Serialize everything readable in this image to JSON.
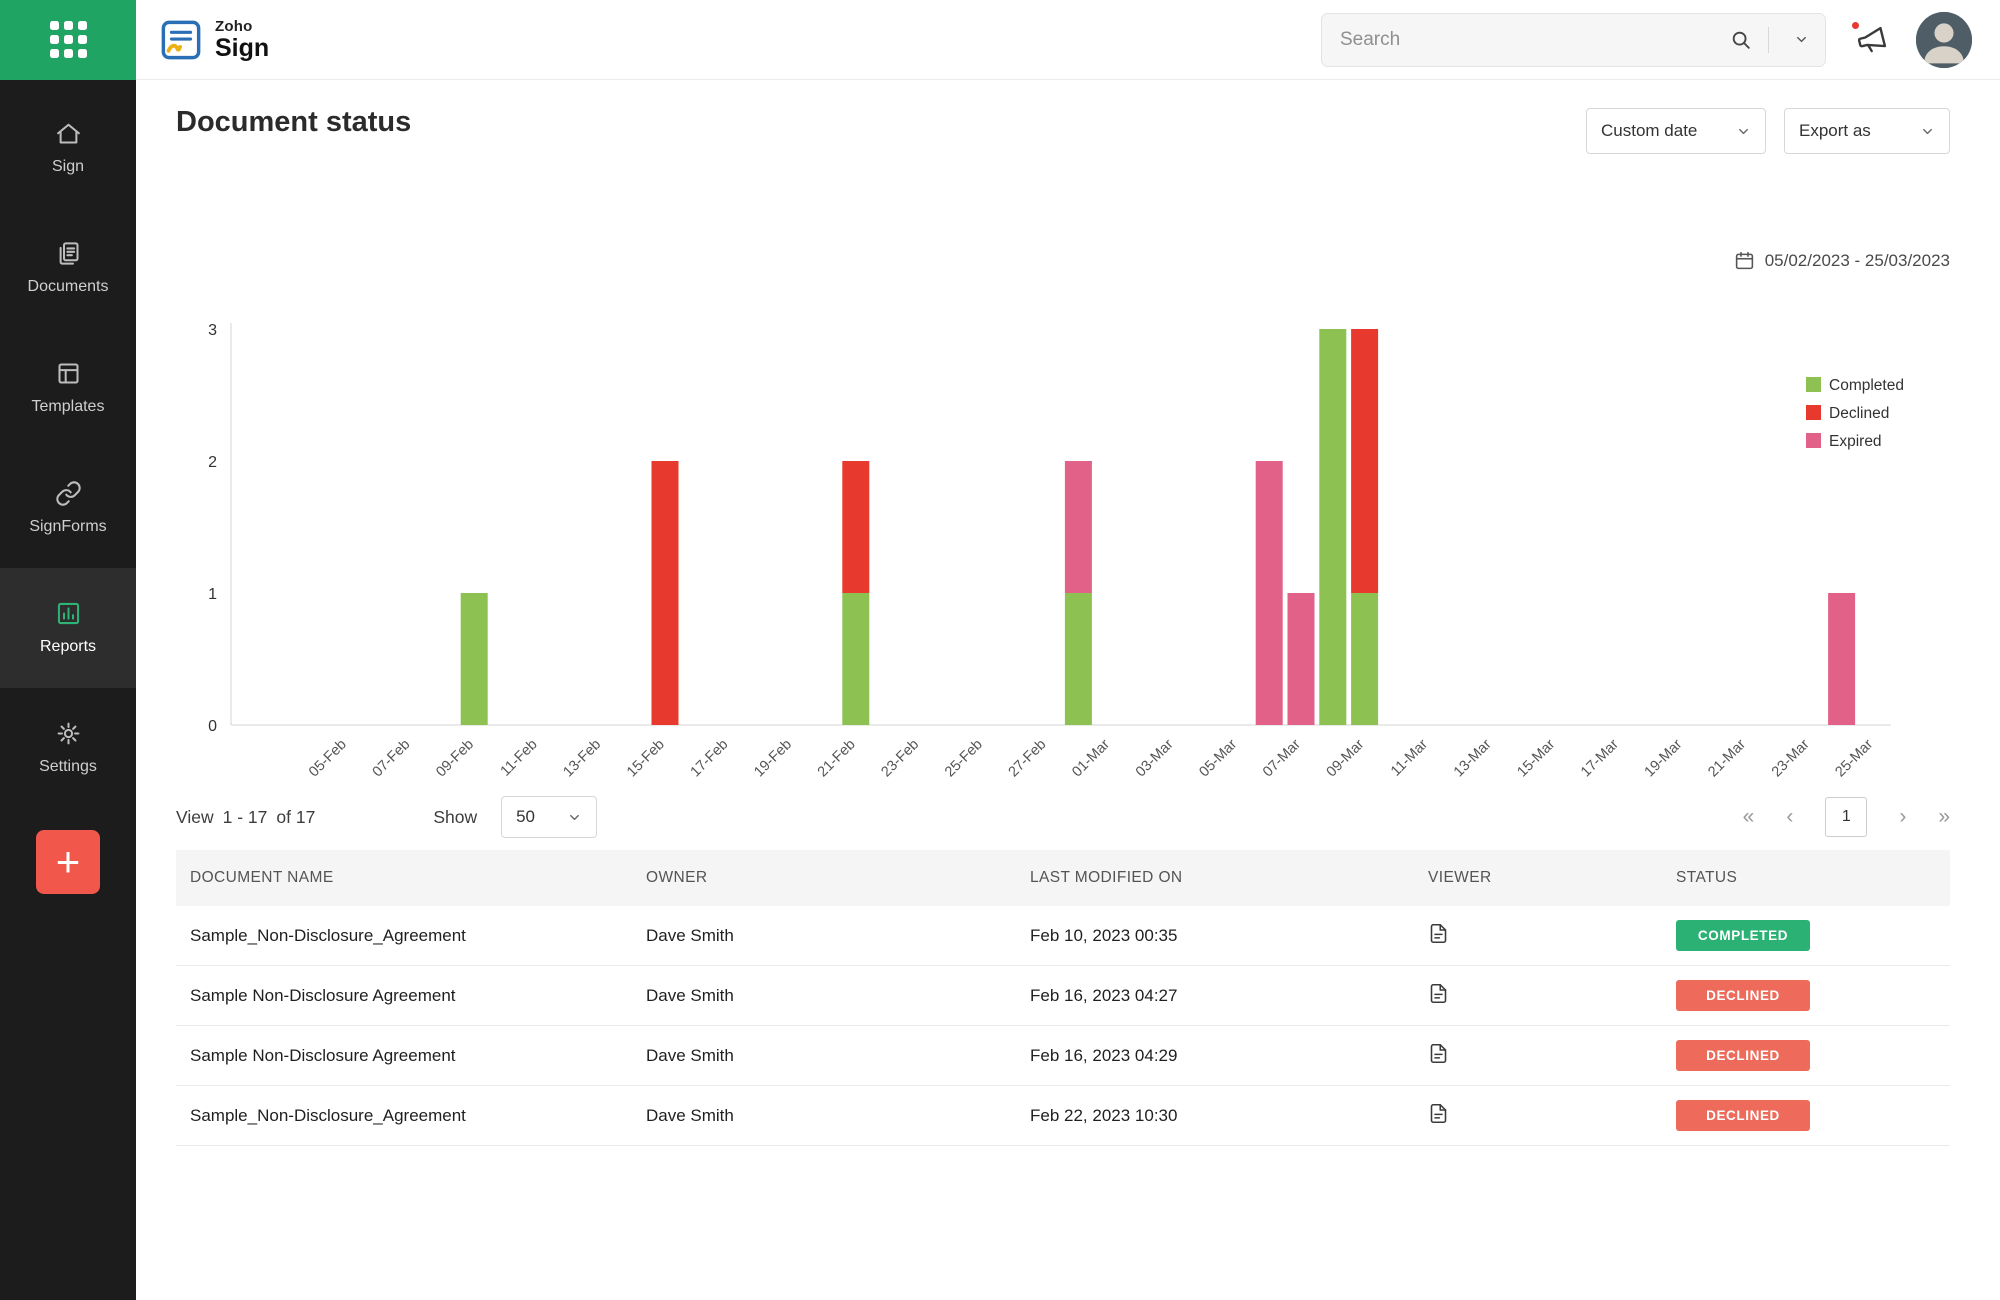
{
  "topbar": {
    "logo_zoho": "Zoho",
    "logo_sign": "Sign",
    "search_placeholder": "Search"
  },
  "sidebar": {
    "items": [
      {
        "label": "Sign",
        "icon": "home",
        "active": false
      },
      {
        "label": "Documents",
        "icon": "documents",
        "active": false
      },
      {
        "label": "Templates",
        "icon": "templates",
        "active": false
      },
      {
        "label": "SignForms",
        "icon": "signforms",
        "active": false
      },
      {
        "label": "Reports",
        "icon": "reports",
        "active": true
      },
      {
        "label": "Settings",
        "icon": "settings",
        "active": false
      }
    ],
    "add_label": "+"
  },
  "page": {
    "title": "Document status",
    "custom_date_label": "Custom date",
    "export_label": "Export as",
    "date_range": "05/02/2023 - 25/03/2023"
  },
  "chart_data": {
    "type": "bar",
    "stacked": true,
    "title": "",
    "xlabel": "",
    "ylabel": "",
    "ylim": [
      0,
      3
    ],
    "yticks": [
      0,
      1,
      2,
      3
    ],
    "grid": false,
    "legend_position": "right",
    "tick_labels": [
      "05-Feb",
      "07-Feb",
      "09-Feb",
      "11-Feb",
      "13-Feb",
      "15-Feb",
      "17-Feb",
      "19-Feb",
      "21-Feb",
      "23-Feb",
      "25-Feb",
      "27-Feb",
      "01-Mar",
      "03-Mar",
      "05-Mar",
      "07-Mar",
      "09-Mar",
      "11-Mar",
      "13-Mar",
      "15-Mar",
      "17-Mar",
      "19-Mar",
      "21-Mar",
      "23-Mar",
      "25-Mar"
    ],
    "day_span": {
      "start": "05-Feb",
      "end": "25-Mar",
      "total_days": 49
    },
    "legend": [
      {
        "name": "Completed",
        "color": "#8dc152"
      },
      {
        "name": "Declined",
        "color": "#e8392e"
      },
      {
        "name": "Expired",
        "color": "#e26189"
      }
    ],
    "bars": [
      {
        "date": "09-Feb",
        "day_index": 4,
        "segments": [
          {
            "series": "Completed",
            "value": 1
          }
        ]
      },
      {
        "date": "15-Feb",
        "day_index": 10,
        "segments": [
          {
            "series": "Declined",
            "value": 2
          }
        ]
      },
      {
        "date": "21-Feb",
        "day_index": 16,
        "segments": [
          {
            "series": "Completed",
            "value": 1
          },
          {
            "series": "Declined",
            "value": 1
          }
        ]
      },
      {
        "date": "28-Feb",
        "day_index": 23,
        "segments": [
          {
            "series": "Completed",
            "value": 1
          },
          {
            "series": "Expired",
            "value": 1
          }
        ]
      },
      {
        "date": "06-Mar",
        "day_index": 29,
        "segments": [
          {
            "series": "Expired",
            "value": 2
          }
        ]
      },
      {
        "date": "07-Mar",
        "day_index": 30,
        "segments": [
          {
            "series": "Expired",
            "value": 1
          }
        ]
      },
      {
        "date": "08-Mar",
        "day_index": 31,
        "segments": [
          {
            "series": "Completed",
            "value": 3
          }
        ]
      },
      {
        "date": "09-Mar",
        "day_index": 32,
        "segments": [
          {
            "series": "Completed",
            "value": 1
          },
          {
            "series": "Declined",
            "value": 2
          }
        ]
      },
      {
        "date": "24-Mar",
        "day_index": 47,
        "segments": [
          {
            "series": "Expired",
            "value": 1
          }
        ]
      }
    ]
  },
  "table_controls": {
    "view_label": "View",
    "view_range": "1 - 17",
    "of_label": "of 17",
    "show_label": "Show",
    "show_value": "50",
    "pager": {
      "first": "«",
      "prev": "‹",
      "page": "1",
      "next": "›",
      "last": "»"
    }
  },
  "table": {
    "headers": [
      "DOCUMENT NAME",
      "OWNER",
      "LAST MODIFIED ON",
      "VIEWER",
      "STATUS"
    ],
    "rows": [
      {
        "name": "Sample_Non-Disclosure_Agreement",
        "owner": "Dave Smith",
        "modified": "Feb 10, 2023 00:35",
        "status": "COMPLETED"
      },
      {
        "name": "Sample Non-Disclosure Agreement",
        "owner": "Dave Smith",
        "modified": "Feb 16, 2023 04:27",
        "status": "DECLINED"
      },
      {
        "name": "Sample Non-Disclosure Agreement",
        "owner": "Dave Smith",
        "modified": "Feb 16, 2023 04:29",
        "status": "DECLINED"
      },
      {
        "name": "Sample_Non-Disclosure_Agreement",
        "owner": "Dave Smith",
        "modified": "Feb 22, 2023 10:30",
        "status": "DECLINED"
      }
    ]
  },
  "colors": {
    "brand_green": "#20a464",
    "sidebar_active_icon": "#2eb377",
    "add_button": "#f2574c",
    "notification_dot": "#e8392e",
    "series": {
      "Completed": "#8dc152",
      "Declined": "#e8392e",
      "Expired": "#e26189"
    },
    "status_badges": {
      "COMPLETED": "#2cb175",
      "DECLINED": "#ee6a5a"
    }
  }
}
